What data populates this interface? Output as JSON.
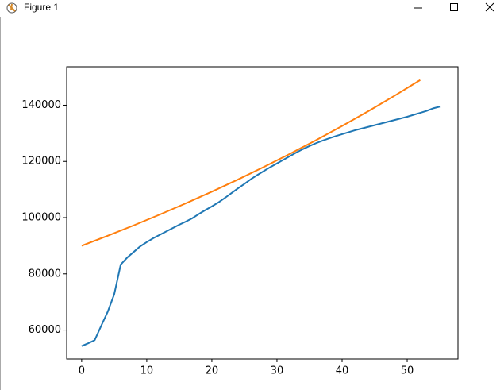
{
  "window": {
    "title": "Figure 1"
  },
  "chart_data": {
    "type": "line",
    "series": [
      {
        "color": "#1f77b4",
        "x": [
          0,
          1,
          2,
          3,
          4,
          5,
          6,
          7,
          8,
          9,
          10,
          11,
          12,
          13,
          14,
          15,
          16,
          17,
          18,
          19,
          20,
          21,
          22,
          23,
          24,
          25,
          26,
          27,
          28,
          29,
          30,
          31,
          32,
          33,
          34,
          35,
          36,
          37,
          38,
          39,
          40,
          41,
          42,
          43,
          44,
          45,
          46,
          47,
          48,
          49,
          50,
          51,
          52,
          53,
          54,
          55
        ],
        "values": [
          54300,
          55300,
          56400,
          61500,
          66500,
          72700,
          83300,
          85800,
          87800,
          89800,
          91300,
          92700,
          93900,
          95100,
          96300,
          97500,
          98600,
          99800,
          101300,
          102700,
          104000,
          105400,
          107000,
          108700,
          110400,
          112000,
          113700,
          115200,
          116600,
          118000,
          119300,
          120600,
          121900,
          123200,
          124400,
          125500,
          126500,
          127400,
          128200,
          129000,
          129700,
          130400,
          131100,
          131700,
          132300,
          132900,
          133500,
          134100,
          134700,
          135300,
          135900,
          136600,
          137300,
          138000,
          138900,
          139500
        ]
      },
      {
        "color": "#ff7f0e",
        "x": [
          0,
          4,
          8,
          12,
          16,
          20,
          24,
          28,
          32,
          36,
          40,
          44,
          48,
          52
        ],
        "values": [
          90000,
          93560,
          97250,
          101100,
          105090,
          109250,
          113560,
          118050,
          122720,
          127570,
          132610,
          137850,
          143300,
          148960
        ]
      }
    ],
    "xlim": [
      -2.3,
      57.8
    ],
    "xticks": [
      0,
      10,
      20,
      30,
      40,
      50
    ],
    "ylim": [
      49700,
      153700
    ],
    "yticks": [
      60000,
      80000,
      100000,
      120000,
      140000
    ]
  }
}
